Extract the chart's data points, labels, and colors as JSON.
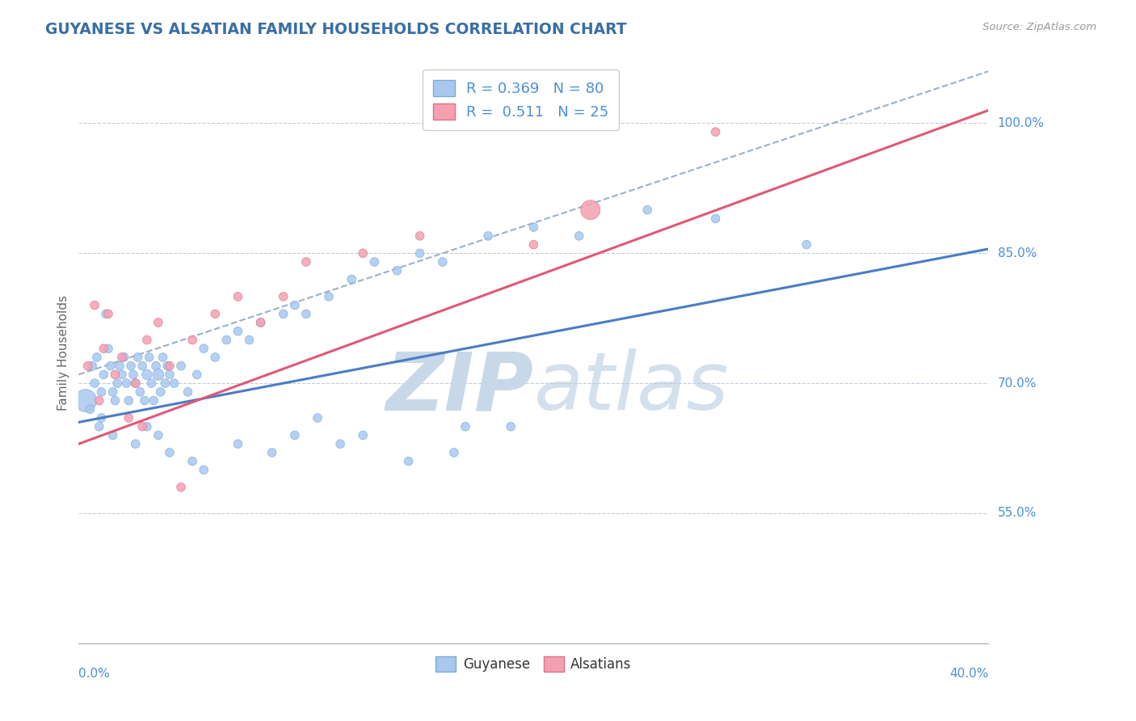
{
  "title": "GUYANESE VS ALSATIAN FAMILY HOUSEHOLDS CORRELATION CHART",
  "source_text": "Source: ZipAtlas.com",
  "ylabel": "Family Households",
  "ylabel_tick_vals": [
    55,
    70,
    85,
    100
  ],
  "xmin": 0.0,
  "xmax": 40.0,
  "ymin": 40.0,
  "ymax": 107.0,
  "R_blue": 0.369,
  "N_blue": 80,
  "R_pink": 0.511,
  "N_pink": 25,
  "blue_color": "#a8c8f0",
  "pink_color": "#f4a0b0",
  "blue_edge": "#7aacd6",
  "pink_edge": "#e07090",
  "line_blue": "#4a7cc4",
  "line_pink": "#e05878",
  "line_gray": "#9ab0cc",
  "title_color": "#3a6ea5",
  "axis_label_color": "#4a90d9",
  "legend_text_color": "#4a90d9",
  "blue_line_x0": 0.0,
  "blue_line_y0": 65.5,
  "blue_line_x1": 40.0,
  "blue_line_y1": 85.5,
  "pink_line_x0": 0.0,
  "pink_line_y0": 63.0,
  "pink_line_x1": 40.0,
  "pink_line_y1": 101.5,
  "gray_line_x0": 0.0,
  "gray_line_y0": 71.0,
  "gray_line_x1": 40.0,
  "gray_line_y1": 106.0,
  "blue_scatter_x": [
    0.3,
    0.5,
    0.6,
    0.7,
    0.8,
    0.9,
    1.0,
    1.1,
    1.2,
    1.3,
    1.4,
    1.5,
    1.6,
    1.7,
    1.8,
    1.9,
    2.0,
    2.1,
    2.2,
    2.3,
    2.4,
    2.5,
    2.6,
    2.7,
    2.8,
    2.9,
    3.0,
    3.1,
    3.2,
    3.3,
    3.4,
    3.5,
    3.6,
    3.7,
    3.8,
    3.9,
    4.0,
    4.2,
    4.5,
    4.8,
    5.2,
    5.5,
    6.0,
    6.5,
    7.0,
    7.5,
    8.0,
    9.0,
    9.5,
    10.0,
    11.0,
    12.0,
    13.0,
    14.0,
    15.0,
    16.0,
    18.0,
    20.0,
    22.0,
    25.0,
    28.0,
    32.0,
    1.0,
    1.5,
    2.5,
    3.0,
    3.5,
    4.0,
    5.0,
    5.5,
    7.0,
    8.5,
    9.5,
    11.5,
    14.5,
    17.0,
    10.5,
    12.5,
    16.5,
    19.0
  ],
  "blue_scatter_y": [
    68,
    67,
    72,
    70,
    73,
    65,
    69,
    71,
    78,
    74,
    72,
    69,
    68,
    70,
    72,
    71,
    73,
    70,
    68,
    72,
    71,
    70,
    73,
    69,
    72,
    68,
    71,
    73,
    70,
    68,
    72,
    71,
    69,
    73,
    70,
    72,
    71,
    70,
    72,
    69,
    71,
    74,
    73,
    75,
    76,
    75,
    77,
    78,
    79,
    78,
    80,
    82,
    84,
    83,
    85,
    84,
    87,
    88,
    87,
    90,
    89,
    86,
    66,
    64,
    63,
    65,
    64,
    62,
    61,
    60,
    63,
    62,
    64,
    63,
    61,
    65,
    66,
    64,
    62,
    65
  ],
  "blue_scatter_sizes": [
    400,
    60,
    60,
    60,
    60,
    60,
    60,
    60,
    60,
    60,
    60,
    60,
    60,
    60,
    60,
    60,
    60,
    60,
    60,
    60,
    60,
    60,
    60,
    60,
    60,
    60,
    80,
    60,
    60,
    60,
    60,
    100,
    60,
    60,
    60,
    60,
    60,
    60,
    60,
    60,
    60,
    60,
    60,
    60,
    60,
    60,
    60,
    60,
    60,
    60,
    60,
    60,
    60,
    60,
    60,
    60,
    60,
    60,
    60,
    60,
    60,
    60,
    60,
    60,
    60,
    60,
    60,
    60,
    60,
    60,
    60,
    60,
    60,
    60,
    60,
    60,
    60,
    60,
    60,
    60
  ],
  "pink_scatter_x": [
    0.4,
    0.7,
    0.9,
    1.1,
    1.3,
    1.6,
    1.9,
    2.2,
    2.5,
    3.0,
    3.5,
    4.0,
    5.0,
    6.0,
    7.0,
    8.0,
    9.0,
    10.0,
    12.5,
    15.0,
    20.0,
    22.5,
    28.0,
    2.8,
    4.5
  ],
  "pink_scatter_y": [
    72,
    79,
    68,
    74,
    78,
    71,
    73,
    66,
    70,
    75,
    77,
    72,
    75,
    78,
    80,
    77,
    80,
    84,
    85,
    87,
    86,
    90,
    99,
    65,
    58
  ],
  "pink_scatter_sizes": [
    60,
    60,
    60,
    60,
    60,
    60,
    60,
    60,
    60,
    60,
    60,
    60,
    60,
    60,
    60,
    60,
    60,
    60,
    60,
    60,
    60,
    300,
    60,
    60,
    60
  ]
}
